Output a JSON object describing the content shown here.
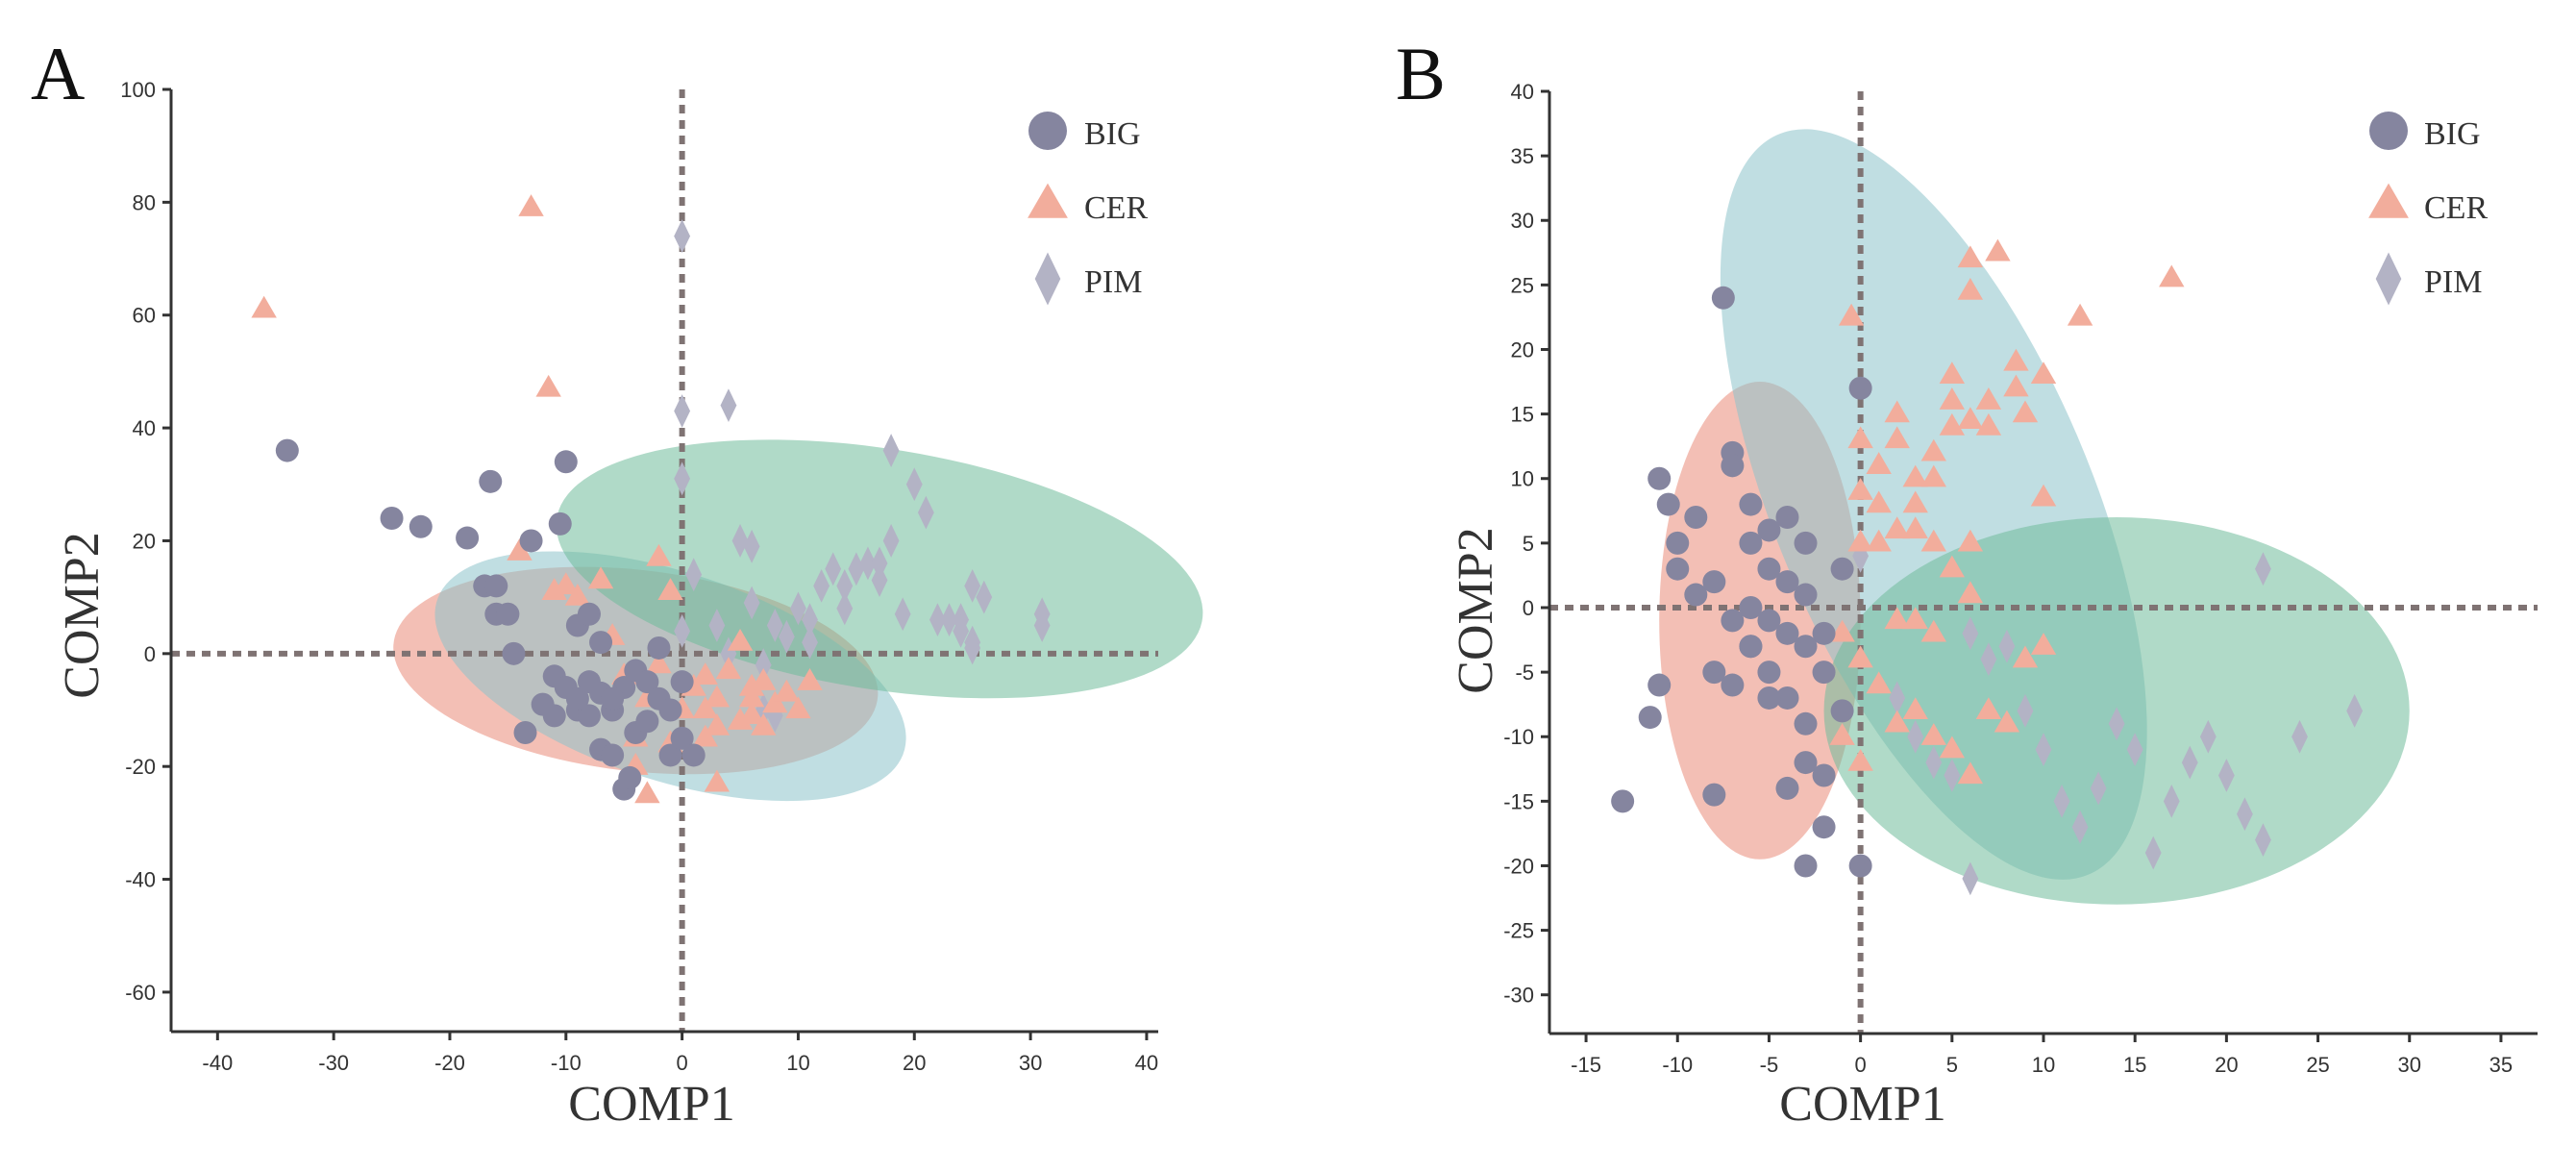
{
  "colors": {
    "BIG": "#85859f",
    "CER": "#f2ad9c",
    "PIM": "#b3b3c5",
    "ellipse_BIG": "#e98a78",
    "ellipse_CER": "#8cc3ca",
    "ellipse_PIM": "#6fbb9a",
    "axis": "#333333",
    "refline": "#7f7373"
  },
  "chart_data": [
    {
      "panel": "A",
      "type": "scatter",
      "xlabel": "COMP1",
      "ylabel": "COMP2",
      "xlim": [
        -44,
        41
      ],
      "ylim": [
        -67,
        100
      ],
      "xticks": [
        -40,
        -30,
        -20,
        -10,
        0,
        10,
        20,
        30,
        40
      ],
      "yticks": [
        -60,
        -40,
        -20,
        0,
        20,
        40,
        60,
        80,
        100
      ],
      "legend": {
        "position": "top-right",
        "entries": [
          {
            "name": "BIG",
            "marker": "circle"
          },
          {
            "name": "CER",
            "marker": "triangle"
          },
          {
            "name": "PIM",
            "marker": "diamond"
          }
        ]
      },
      "ellipses": [
        {
          "group": "BIG",
          "cx": -4,
          "cy": -3,
          "rx": 22,
          "ry": 17,
          "angle": -30
        },
        {
          "group": "CER",
          "cx": -1,
          "cy": -4,
          "rx": 26,
          "ry": 15,
          "angle": -50
        },
        {
          "group": "PIM",
          "cx": 17,
          "cy": 15,
          "rx": 20,
          "ry": 30,
          "angle": 60
        }
      ],
      "series": [
        {
          "name": "BIG",
          "points": [
            [
              -34,
              36
            ],
            [
              -25,
              24
            ],
            [
              -22.5,
              22.5
            ],
            [
              -16.5,
              30.5
            ],
            [
              -18.5,
              20.5
            ],
            [
              -17,
              12
            ],
            [
              -16,
              12
            ],
            [
              -16,
              7
            ],
            [
              -15,
              7
            ],
            [
              -14.5,
              0
            ],
            [
              -13.5,
              -14
            ],
            [
              -13,
              20
            ],
            [
              -11,
              -4
            ],
            [
              -10.5,
              23
            ],
            [
              -10,
              34
            ],
            [
              -11,
              -11
            ],
            [
              -10,
              -6
            ],
            [
              -9,
              5
            ],
            [
              -9,
              -10
            ],
            [
              -8,
              -11
            ],
            [
              -8,
              7
            ],
            [
              -7,
              2
            ],
            [
              -7,
              -7
            ],
            [
              -7,
              -17
            ],
            [
              -6,
              -18
            ],
            [
              -6,
              -10
            ],
            [
              -5,
              -6
            ],
            [
              -5,
              -24
            ],
            [
              -4,
              -14
            ],
            [
              -4,
              -3
            ],
            [
              -3,
              -5
            ],
            [
              -3,
              -12
            ],
            [
              -2,
              -8
            ],
            [
              -2,
              1
            ],
            [
              -1,
              -10
            ],
            [
              -1,
              -18
            ],
            [
              0,
              -5
            ],
            [
              0,
              -15
            ],
            [
              1,
              -18
            ],
            [
              -4.5,
              -22
            ],
            [
              -6,
              -8
            ],
            [
              -12,
              -9
            ],
            [
              -9,
              -8
            ],
            [
              -8,
              -5
            ]
          ]
        },
        {
          "name": "CER",
          "points": [
            [
              -36,
              61
            ],
            [
              -13,
              79
            ],
            [
              -11.5,
              47
            ],
            [
              -14,
              18
            ],
            [
              -10,
              12
            ],
            [
              -11,
              11
            ],
            [
              -9,
              10
            ],
            [
              -7,
              13
            ],
            [
              -6,
              3
            ],
            [
              -5,
              -4
            ],
            [
              -4,
              -15
            ],
            [
              -4,
              -20
            ],
            [
              -3,
              -8
            ],
            [
              -2,
              17
            ],
            [
              -1,
              11
            ],
            [
              -2,
              -2
            ],
            [
              0,
              -10
            ],
            [
              1,
              -6
            ],
            [
              2,
              -4
            ],
            [
              3,
              -8
            ],
            [
              3,
              -13
            ],
            [
              4,
              -3
            ],
            [
              5,
              -12
            ],
            [
              6,
              -8
            ],
            [
              6,
              -11
            ],
            [
              7,
              -5
            ],
            [
              8,
              -9
            ],
            [
              9,
              -7
            ],
            [
              10,
              -10
            ],
            [
              11,
              -5
            ],
            [
              -1,
              -16
            ],
            [
              2,
              -15
            ],
            [
              3,
              -23
            ],
            [
              -3,
              -25
            ],
            [
              5,
              2
            ],
            [
              2,
              -10
            ],
            [
              6,
              -6
            ],
            [
              7,
              -13
            ]
          ]
        },
        {
          "name": "PIM",
          "points": [
            [
              0,
              74
            ],
            [
              0,
              43
            ],
            [
              4,
              44
            ],
            [
              0,
              31
            ],
            [
              0,
              4
            ],
            [
              1,
              14
            ],
            [
              3,
              5
            ],
            [
              4,
              0
            ],
            [
              5,
              20
            ],
            [
              6,
              19
            ],
            [
              6,
              9
            ],
            [
              7,
              -2
            ],
            [
              8,
              5
            ],
            [
              9,
              3
            ],
            [
              10,
              8
            ],
            [
              11,
              6
            ],
            [
              11,
              2
            ],
            [
              12,
              12
            ],
            [
              13,
              15
            ],
            [
              14,
              12
            ],
            [
              14,
              8
            ],
            [
              15,
              15
            ],
            [
              16,
              16
            ],
            [
              17,
              13
            ],
            [
              17,
              16
            ],
            [
              18,
              20
            ],
            [
              18,
              36
            ],
            [
              19,
              7
            ],
            [
              20,
              30
            ],
            [
              21,
              25
            ],
            [
              22,
              6
            ],
            [
              23,
              6
            ],
            [
              24,
              6
            ],
            [
              24,
              4
            ],
            [
              25,
              12
            ],
            [
              25,
              2
            ],
            [
              25,
              1
            ],
            [
              26,
              10
            ],
            [
              31,
              7
            ],
            [
              31,
              5
            ],
            [
              7,
              -10
            ],
            [
              8,
              -11
            ]
          ]
        }
      ]
    },
    {
      "panel": "B",
      "type": "scatter",
      "xlabel": "COMP1",
      "ylabel": "COMP2",
      "xlim": [
        -17,
        37
      ],
      "ylim": [
        -33,
        40
      ],
      "xticks": [
        -15,
        -10,
        -5,
        0,
        5,
        10,
        15,
        20,
        25,
        30,
        35
      ],
      "yticks": [
        -30,
        -25,
        -20,
        -15,
        -10,
        -5,
        0,
        5,
        10,
        15,
        20,
        25,
        30,
        35,
        40
      ],
      "legend": {
        "position": "top-right",
        "entries": [
          {
            "name": "BIG",
            "marker": "circle"
          },
          {
            "name": "CER",
            "marker": "triangle"
          },
          {
            "name": "PIM",
            "marker": "diamond"
          }
        ]
      },
      "ellipses": [
        {
          "group": "BIG",
          "cx": -5.5,
          "cy": -1,
          "rx": 5.5,
          "ry": 18.5,
          "angle": 0
        },
        {
          "group": "CER",
          "cx": 4,
          "cy": 8,
          "rx": 9,
          "ry": 30,
          "angle": 15
        },
        {
          "group": "PIM",
          "cx": 14,
          "cy": -8,
          "rx": 16,
          "ry": 15,
          "angle": 0
        }
      ],
      "series": [
        {
          "name": "BIG",
          "points": [
            [
              -7.5,
              24
            ],
            [
              -13,
              -15
            ],
            [
              -11,
              10
            ],
            [
              -11,
              -6
            ],
            [
              -11.5,
              -8.5
            ],
            [
              -10.5,
              8
            ],
            [
              -10,
              3
            ],
            [
              -10,
              5
            ],
            [
              -9,
              7
            ],
            [
              -9,
              1
            ],
            [
              -8,
              -14.5
            ],
            [
              -8,
              2
            ],
            [
              -7,
              12
            ],
            [
              -7,
              11
            ],
            [
              -7,
              -1
            ],
            [
              -7,
              -6
            ],
            [
              -6,
              8
            ],
            [
              -6,
              5
            ],
            [
              -6,
              0
            ],
            [
              -6,
              -3
            ],
            [
              -5,
              6
            ],
            [
              -5,
              3
            ],
            [
              -5,
              -1
            ],
            [
              -5,
              -5
            ],
            [
              -4,
              7
            ],
            [
              -4,
              2
            ],
            [
              -4,
              -2
            ],
            [
              -4,
              -7
            ],
            [
              -4,
              -14
            ],
            [
              -3,
              5
            ],
            [
              -3,
              1
            ],
            [
              -3,
              -3
            ],
            [
              -3,
              -9
            ],
            [
              -3,
              -12
            ],
            [
              -2,
              -5
            ],
            [
              -2,
              -2
            ],
            [
              -1,
              3
            ],
            [
              -1,
              -8
            ],
            [
              0,
              17
            ],
            [
              0,
              -20
            ],
            [
              -2,
              -17
            ],
            [
              -3,
              -20
            ],
            [
              -6,
              -3
            ],
            [
              -8,
              -5
            ],
            [
              -5,
              -7
            ],
            [
              -2,
              -13
            ]
          ]
        },
        {
          "name": "CER",
          "points": [
            [
              -0.5,
              22.5
            ],
            [
              17,
              25.5
            ],
            [
              12,
              22.5
            ],
            [
              6,
              27
            ],
            [
              6,
              24.5
            ],
            [
              7.5,
              27.5
            ],
            [
              6,
              14.5
            ],
            [
              7,
              16
            ],
            [
              7,
              14
            ],
            [
              8.5,
              19
            ],
            [
              8.5,
              17
            ],
            [
              9,
              15
            ],
            [
              10,
              18
            ],
            [
              10,
              8.5
            ],
            [
              5,
              18
            ],
            [
              5,
              16
            ],
            [
              5,
              14
            ],
            [
              4,
              12
            ],
            [
              4,
              10
            ],
            [
              3,
              10
            ],
            [
              3,
              8
            ],
            [
              2,
              15
            ],
            [
              2,
              13
            ],
            [
              1,
              11
            ],
            [
              1,
              8
            ],
            [
              0,
              13
            ],
            [
              0,
              9
            ],
            [
              0,
              5
            ],
            [
              1,
              5
            ],
            [
              2,
              6
            ],
            [
              3,
              6
            ],
            [
              4,
              5
            ],
            [
              5,
              3
            ],
            [
              6,
              5
            ],
            [
              6,
              1
            ],
            [
              2,
              -1
            ],
            [
              3,
              -1
            ],
            [
              4,
              -2
            ],
            [
              -1,
              -2
            ],
            [
              0,
              -4
            ],
            [
              1,
              -6
            ],
            [
              2,
              -9
            ],
            [
              3,
              -8
            ],
            [
              4,
              -10
            ],
            [
              5,
              -11
            ],
            [
              6,
              -13
            ],
            [
              7,
              -8
            ],
            [
              8,
              -9
            ],
            [
              9,
              -4
            ],
            [
              10,
              -3
            ],
            [
              0,
              -12
            ],
            [
              -1,
              -10
            ]
          ]
        },
        {
          "name": "PIM",
          "points": [
            [
              22,
              3
            ],
            [
              0,
              4
            ],
            [
              2,
              -7
            ],
            [
              3,
              -10
            ],
            [
              4,
              -12
            ],
            [
              5,
              -13
            ],
            [
              6,
              -2
            ],
            [
              7,
              -4
            ],
            [
              8,
              -3
            ],
            [
              9,
              -8
            ],
            [
              10,
              -11
            ],
            [
              11,
              -15
            ],
            [
              12,
              -17
            ],
            [
              13,
              -14
            ],
            [
              14,
              -9
            ],
            [
              15,
              -11
            ],
            [
              16,
              -19
            ],
            [
              17,
              -15
            ],
            [
              18,
              -12
            ],
            [
              19,
              -10
            ],
            [
              20,
              -13
            ],
            [
              21,
              -16
            ],
            [
              22,
              -18
            ],
            [
              24,
              -10
            ],
            [
              27,
              -8
            ],
            [
              6,
              -21
            ]
          ]
        }
      ]
    }
  ]
}
